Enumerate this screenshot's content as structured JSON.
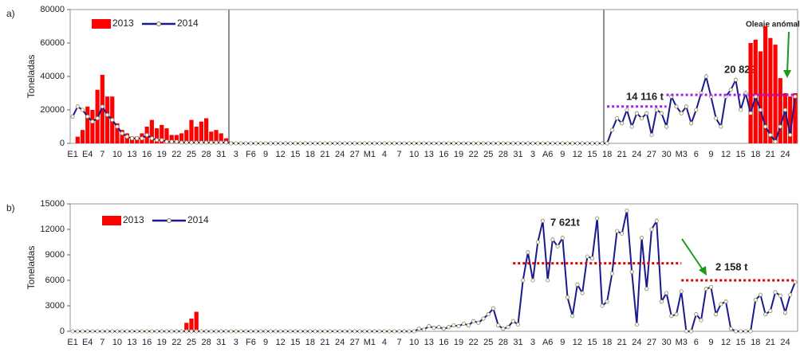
{
  "chart_data": [
    {
      "type": "combo",
      "label": "a)",
      "ylabel": "Toneladas",
      "categories": [
        "E1",
        null,
        null,
        "E4",
        null,
        null,
        "7",
        null,
        null,
        "10",
        null,
        null,
        "13",
        null,
        null,
        "16",
        null,
        null,
        "19",
        null,
        null,
        "22",
        null,
        null,
        "25",
        null,
        null,
        "28",
        null,
        null,
        "31",
        null,
        null,
        "3",
        null,
        null,
        "F6",
        null,
        null,
        "9",
        null,
        null,
        "12",
        null,
        null,
        "15",
        null,
        null,
        "18",
        null,
        null,
        "21",
        null,
        null,
        "24",
        null,
        null,
        "27",
        null,
        null,
        "M1",
        null,
        null,
        "4",
        null,
        null,
        "7",
        null,
        null,
        "10",
        null,
        null,
        "13",
        null,
        null,
        "16",
        null,
        null,
        "19",
        null,
        null,
        "22",
        null,
        null,
        "25",
        null,
        null,
        "28",
        null,
        null,
        "31",
        null,
        null,
        "3",
        null,
        null,
        "A6",
        null,
        null,
        "9",
        null,
        null,
        "12",
        null,
        null,
        "15",
        null,
        null,
        "18",
        null,
        null,
        "21",
        null,
        null,
        "24",
        null,
        null,
        "27",
        null,
        null,
        "30",
        null,
        null,
        "M3",
        null,
        null,
        "6",
        null,
        null,
        "9",
        null,
        null,
        "12",
        null,
        null,
        "15",
        null,
        null,
        "18",
        null,
        null,
        "21",
        null,
        null,
        "24",
        null,
        null
      ],
      "series": [
        {
          "name": "2013",
          "kind": "bar",
          "color": "#ff0000",
          "values": [
            0,
            4000,
            8000,
            22000,
            20000,
            32000,
            41000,
            28000,
            28000,
            12000,
            8000,
            6000,
            4000,
            4000,
            6000,
            10000,
            14000,
            9000,
            11000,
            9000,
            5000,
            5000,
            6000,
            8000,
            14000,
            10000,
            13000,
            15000,
            7000,
            8000,
            6000,
            3000,
            1000,
            null,
            null,
            null,
            null,
            null,
            null,
            null,
            null,
            null,
            null,
            null,
            null,
            null,
            null,
            null,
            null,
            null,
            null,
            null,
            null,
            null,
            null,
            null,
            null,
            null,
            null,
            null,
            null,
            null,
            null,
            null,
            null,
            null,
            null,
            null,
            null,
            null,
            null,
            null,
            null,
            null,
            null,
            null,
            null,
            null,
            null,
            null,
            null,
            null,
            null,
            null,
            null,
            null,
            null,
            null,
            null,
            null,
            null,
            null,
            null,
            null,
            null,
            null,
            null,
            null,
            null,
            null,
            null,
            null,
            null,
            null,
            null,
            null,
            null,
            null,
            null,
            null,
            null,
            null,
            null,
            null,
            null,
            null,
            null,
            null,
            null,
            null,
            null,
            null,
            null,
            null,
            null,
            null,
            null,
            null,
            null,
            null,
            null,
            null,
            null,
            null,
            null,
            null,
            null,
            60000,
            62000,
            55000,
            70000,
            63000,
            59000,
            39000,
            30000,
            28000,
            30000
          ]
        },
        {
          "name": "2014",
          "kind": "line",
          "color": "#1a1a8c",
          "values": [
            16000,
            22000,
            20000,
            16000,
            13000,
            15000,
            22000,
            17000,
            14000,
            10000,
            6000,
            4000,
            3000,
            3000,
            3000,
            5000,
            3000,
            2000,
            2000,
            1000,
            1000,
            1000,
            500,
            500,
            500,
            500,
            500,
            500,
            500,
            500,
            500,
            500,
            0,
            0,
            0,
            0,
            0,
            0,
            0,
            0,
            0,
            0,
            0,
            0,
            0,
            0,
            0,
            0,
            0,
            0,
            0,
            0,
            0,
            0,
            0,
            0,
            0,
            0,
            0,
            0,
            0,
            0,
            0,
            0,
            0,
            0,
            0,
            0,
            0,
            0,
            0,
            0,
            0,
            0,
            0,
            0,
            0,
            0,
            0,
            0,
            0,
            0,
            0,
            0,
            0,
            0,
            0,
            0,
            0,
            0,
            0,
            0,
            0,
            0,
            0,
            0,
            0,
            0,
            0,
            0,
            0,
            0,
            0,
            0,
            0,
            0,
            0,
            0,
            0,
            8000,
            15000,
            12000,
            20000,
            10000,
            18000,
            15000,
            18000,
            5000,
            20000,
            18000,
            10000,
            28000,
            22000,
            18000,
            22000,
            12000,
            20000,
            30000,
            40000,
            28000,
            15000,
            10000,
            28000,
            32000,
            38000,
            20000,
            30000,
            18000,
            28000,
            20000,
            10000,
            5000,
            1000,
            10000,
            20000,
            5000,
            28000
          ]
        }
      ],
      "reference_lines": [
        {
          "value": 22000,
          "start": 108,
          "end": 120,
          "color": "#a020f0"
        },
        {
          "value": 29000,
          "start": 120,
          "end": 146,
          "color": "#a020f0"
        }
      ],
      "annotations": [
        "14 116 t",
        "20 829 t",
        "Oleaje anómalo"
      ],
      "ylim": [
        0,
        80000
      ],
      "yticks": [
        0,
        20000,
        40000,
        60000,
        80000
      ]
    },
    {
      "type": "combo",
      "label": "b)",
      "ylabel": "Toneladas",
      "categories": [
        "E1",
        null,
        null,
        "E4",
        null,
        null,
        "7",
        null,
        null,
        "10",
        null,
        null,
        "13",
        null,
        null,
        "16",
        null,
        null,
        "19",
        null,
        null,
        "22",
        null,
        null,
        "25",
        null,
        null,
        "28",
        null,
        null,
        "31",
        null,
        null,
        "3",
        null,
        null,
        "F6",
        null,
        null,
        "9",
        null,
        null,
        "12",
        null,
        null,
        "15",
        null,
        null,
        "18",
        null,
        null,
        "21",
        null,
        null,
        "24",
        null,
        null,
        "27",
        null,
        null,
        "M1",
        null,
        null,
        "4",
        null,
        null,
        "7",
        null,
        null,
        "10",
        null,
        null,
        "13",
        null,
        null,
        "16",
        null,
        null,
        "19",
        null,
        null,
        "22",
        null,
        null,
        "25",
        null,
        null,
        "28",
        null,
        null,
        "31",
        null,
        null,
        "3",
        null,
        null,
        "A6",
        null,
        null,
        "9",
        null,
        null,
        "12",
        null,
        null,
        "15",
        null,
        null,
        "18",
        null,
        null,
        "21",
        null,
        null,
        "24",
        null,
        null,
        "27",
        null,
        null,
        "30",
        null,
        null,
        "M3",
        null,
        null,
        "6",
        null,
        null,
        "9",
        null,
        null,
        "12",
        null,
        null,
        "15",
        null,
        null,
        "18",
        null,
        null,
        "21",
        null,
        null,
        "24",
        null,
        null
      ],
      "series": [
        {
          "name": "2013",
          "kind": "bar",
          "color": "#ff0000",
          "values": [
            null,
            null,
            null,
            null,
            null,
            null,
            null,
            null,
            null,
            null,
            null,
            null,
            null,
            null,
            null,
            null,
            null,
            null,
            null,
            null,
            null,
            null,
            null,
            1000,
            1500,
            2300,
            null,
            null,
            null,
            null,
            null,
            null,
            null,
            null,
            null,
            null,
            null,
            null,
            null,
            null,
            null,
            null,
            null,
            null,
            null,
            null,
            null,
            null,
            null,
            null,
            null,
            null,
            null,
            null,
            null,
            null,
            null,
            null,
            null,
            null,
            null,
            null,
            null,
            null,
            null,
            null,
            null,
            null,
            null,
            null,
            null,
            null,
            null,
            null,
            null,
            null,
            null,
            null,
            null,
            null,
            null,
            null,
            null,
            null,
            null,
            null,
            null,
            null,
            null,
            null,
            null,
            null,
            null,
            null,
            null,
            null,
            null,
            null,
            null,
            null,
            null,
            null,
            null,
            null,
            null,
            null,
            null,
            null,
            null,
            null,
            null,
            null,
            null,
            null,
            null,
            null,
            null,
            null,
            null,
            null,
            null,
            null,
            null,
            null,
            null,
            null,
            null,
            null,
            null,
            null,
            null,
            null,
            null,
            null,
            null,
            null,
            null,
            null,
            null,
            null,
            null,
            null,
            null,
            null,
            null,
            null,
            null
          ]
        },
        {
          "name": "2014",
          "kind": "line",
          "color": "#1a1a8c",
          "values": [
            0,
            0,
            0,
            0,
            0,
            0,
            0,
            0,
            0,
            0,
            0,
            0,
            0,
            0,
            0,
            0,
            0,
            0,
            0,
            0,
            0,
            0,
            0,
            0,
            0,
            0,
            0,
            0,
            0,
            0,
            0,
            0,
            0,
            0,
            0,
            0,
            0,
            0,
            0,
            0,
            0,
            0,
            0,
            0,
            0,
            0,
            0,
            0,
            0,
            0,
            0,
            0,
            0,
            0,
            0,
            0,
            0,
            0,
            0,
            0,
            0,
            0,
            0,
            0,
            0,
            0,
            0,
            0,
            0,
            0,
            300,
            200,
            600,
            400,
            500,
            300,
            500,
            700,
            600,
            900,
            700,
            1200,
            1000,
            1500,
            2000,
            2700,
            700,
            300,
            500,
            1200,
            800,
            6000,
            9300,
            6000,
            10500,
            13000,
            6000,
            10800,
            10000,
            11000,
            4000,
            1800,
            5500,
            4500,
            8800,
            8600,
            13300,
            3000,
            3500,
            6800,
            11800,
            11500,
            14200,
            7000,
            800,
            11000,
            5000,
            12000,
            13000,
            3500,
            4500,
            1800,
            2000,
            4700,
            0,
            0,
            2000,
            1300,
            5000,
            5200,
            2000,
            3200,
            3500,
            300,
            0,
            0,
            0,
            0,
            3700,
            4300,
            2000,
            2400,
            4600,
            4200,
            2200,
            4300,
            5800
          ]
        }
      ],
      "reference_lines": [
        {
          "value": 8000,
          "start": 89,
          "end": 123,
          "color": "#e00000"
        },
        {
          "value": 6000,
          "start": 123,
          "end": 146,
          "color": "#e00000"
        }
      ],
      "annotations": [
        "7 621t",
        "2 158 t"
      ],
      "ylim": [
        0,
        15000
      ],
      "yticks": [
        0,
        3000,
        6000,
        9000,
        12000,
        15000
      ]
    }
  ]
}
